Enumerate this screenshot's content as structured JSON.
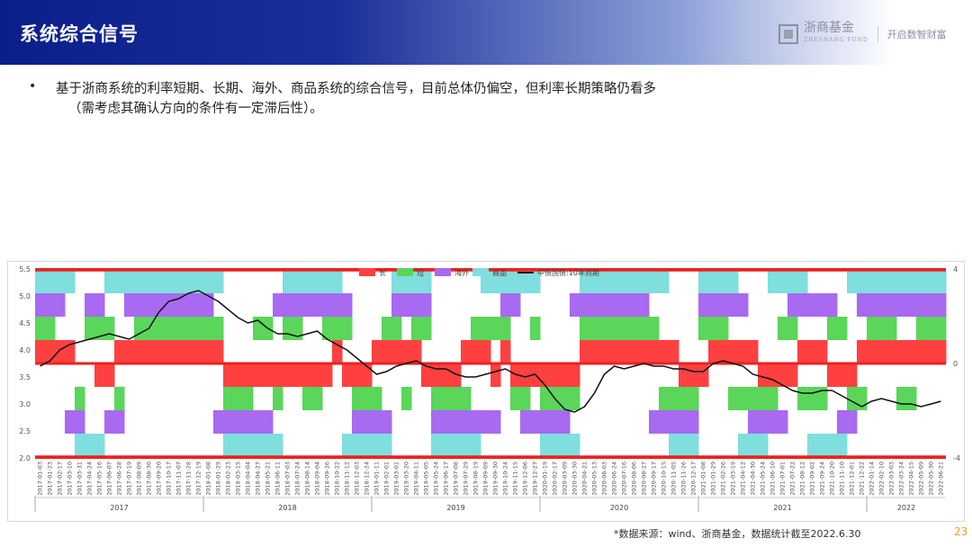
{
  "header": {
    "title": "系统综合信号"
  },
  "logo": {
    "name": "浙商基金",
    "sub": "ZHESHANG FUND",
    "slogan": "开启数智财富"
  },
  "bullet": {
    "symbol": "•",
    "line1": "基于浙商系统的利率短期、长期、海外、商品系统的综合信号，目前总体仍偏空，但利率长期策略仍看多",
    "line2": "（需考虑其确认方向的条件有一定滞后性）。"
  },
  "chart_data": {
    "type": "bar",
    "legend": [
      "长",
      "短",
      "海外",
      "商品",
      "中债国债:10年到期"
    ],
    "colors": {
      "long": "#ff4040",
      "short": "#5ad65a",
      "overseas": "#a86af0",
      "commodity": "#7fdede",
      "yield": "#111111"
    },
    "y_left": {
      "min": 2.0,
      "max": 5.5,
      "ticks": [
        "2.0",
        "2.5",
        "3.0",
        "3.5",
        "4.0",
        "4.5",
        "5.0",
        "5.5"
      ]
    },
    "y_right": {
      "min": -4,
      "max": 4,
      "ticks": [
        "4",
        "0",
        "-4"
      ]
    },
    "years": [
      "2017",
      "2018",
      "2019",
      "2020",
      "2021",
      "2022"
    ],
    "x_ticks": [
      "2017-01-03",
      "2017-01-23",
      "2017-02-17",
      "2017-03-10",
      "2017-03-31",
      "2017-04-24",
      "2017-05-16",
      "2017-06-07",
      "2017-06-28",
      "2017-07-19",
      "2017-08-09",
      "2017-08-30",
      "2017-09-20",
      "2017-10-17",
      "2017-11-07",
      "2017-11-28",
      "2017-12-19",
      "2018-01-08",
      "2018-01-29",
      "2018-02-23",
      "2018-03-15",
      "2018-04-04",
      "2018-04-27",
      "2018-05-21",
      "2018-06-11",
      "2018-07-03",
      "2018-07-24",
      "2018-08-14",
      "2018-09-04",
      "2018-09-26",
      "2018-10-22",
      "2018-11-12",
      "2018-12-03",
      "2018-12-24",
      "2019-01-11",
      "2019-02-01",
      "2019-03-01",
      "2019-03-20",
      "2019-04-11",
      "2019-05-05",
      "2019-05-24",
      "2019-06-17",
      "2019-07-08",
      "2019-07-29",
      "2019-08-19",
      "2019-09-09",
      "2019-09-30",
      "2019-10-24",
      "2019-11-15",
      "2019-12-06",
      "2019-12-27",
      "2020-01-19",
      "2020-02-17",
      "2020-03-09",
      "2020-03-30",
      "2020-04-21",
      "2020-05-13",
      "2020-06-03",
      "2020-06-24",
      "2020-07-16",
      "2020-08-06",
      "2020-08-27",
      "2020-09-17",
      "2020-10-15",
      "2020-11-05",
      "2020-11-26",
      "2020-12-17",
      "2021-01-08",
      "2021-01-29",
      "2021-02-26",
      "2021-03-19",
      "2021-04-12",
      "2021-04-30",
      "2021-05-24",
      "2021-06-10",
      "2021-07-01",
      "2021-07-22",
      "2021-08-12",
      "2021-09-02",
      "2021-09-24",
      "2021-10-20",
      "2021-11-10",
      "2021-12-01",
      "2021-12-22",
      "2022-01-14",
      "2022-02-10",
      "2022-03-03",
      "2022-03-24",
      "2022-04-15",
      "2022-05-09",
      "2022-05-30",
      "2022-06-21"
    ],
    "yield_10y": [
      3.7,
      3.8,
      4.0,
      4.1,
      4.15,
      4.2,
      4.25,
      4.3,
      4.25,
      4.2,
      4.3,
      4.4,
      4.7,
      4.9,
      4.95,
      5.05,
      5.1,
      5.0,
      4.9,
      4.75,
      4.6,
      4.5,
      4.55,
      4.4,
      4.3,
      4.3,
      4.25,
      4.3,
      4.35,
      4.2,
      4.1,
      4.0,
      3.85,
      3.7,
      3.55,
      3.6,
      3.7,
      3.75,
      3.8,
      3.7,
      3.65,
      3.65,
      3.55,
      3.5,
      3.5,
      3.55,
      3.6,
      3.65,
      3.55,
      3.5,
      3.55,
      3.35,
      3.1,
      2.9,
      2.85,
      2.95,
      3.2,
      3.55,
      3.7,
      3.65,
      3.7,
      3.75,
      3.7,
      3.7,
      3.65,
      3.65,
      3.6,
      3.6,
      3.75,
      3.8,
      3.75,
      3.7,
      3.55,
      3.5,
      3.45,
      3.35,
      3.25,
      3.2,
      3.2,
      3.25,
      3.25,
      3.15,
      3.05,
      2.95,
      3.05,
      3.1,
      3.05,
      3.0,
      3.0,
      2.95,
      3.0,
      3.05
    ],
    "signals": {
      "long": [
        1,
        1,
        1,
        1,
        0,
        0,
        -1,
        -1,
        1,
        1,
        1,
        1,
        1,
        1,
        1,
        1,
        1,
        1,
        1,
        -1,
        -1,
        -1,
        -1,
        -1,
        -1,
        -1,
        -1,
        -1,
        -1,
        -1,
        1,
        -1,
        -1,
        -1,
        1,
        1,
        1,
        1,
        1,
        -1,
        -1,
        -1,
        -1,
        1,
        1,
        1,
        -1,
        1,
        -1,
        -1,
        -1,
        -1,
        -1,
        -1,
        -1,
        1,
        1,
        1,
        1,
        1,
        1,
        1,
        1,
        1,
        1,
        -1,
        -1,
        -1,
        1,
        1,
        1,
        1,
        1,
        -1,
        -1,
        -1,
        -1,
        1,
        1,
        1,
        -1,
        -1,
        -1,
        1,
        1,
        1,
        1,
        1,
        1,
        1,
        1,
        1
      ],
      "short": [
        1,
        1,
        0,
        0,
        -1,
        1,
        1,
        1,
        -1,
        0,
        1,
        1,
        1,
        1,
        1,
        1,
        1,
        1,
        1,
        -1,
        -1,
        -1,
        1,
        1,
        -1,
        1,
        1,
        -1,
        -1,
        1,
        1,
        1,
        -1,
        -1,
        -1,
        1,
        1,
        -1,
        1,
        1,
        -1,
        -1,
        -1,
        -1,
        1,
        1,
        1,
        1,
        -1,
        -1,
        1,
        -1,
        -1,
        -1,
        -1,
        1,
        1,
        1,
        1,
        1,
        1,
        1,
        1,
        -1,
        -1,
        -1,
        -1,
        1,
        1,
        1,
        -1,
        -1,
        -1,
        -1,
        -1,
        1,
        1,
        -1,
        -1,
        -1,
        1,
        1,
        -1,
        -1,
        1,
        1,
        1,
        -1,
        -1,
        1,
        1,
        1
      ],
      "overseas": [
        1,
        1,
        1,
        -1,
        -1,
        1,
        1,
        -1,
        -1,
        1,
        1,
        1,
        1,
        1,
        1,
        1,
        1,
        1,
        -1,
        -1,
        -1,
        -1,
        -1,
        -1,
        1,
        1,
        1,
        1,
        1,
        1,
        1,
        1,
        -1,
        -1,
        -1,
        -1,
        1,
        1,
        1,
        1,
        -1,
        -1,
        -1,
        -1,
        -1,
        -1,
        -1,
        1,
        1,
        -1,
        -1,
        -1,
        -1,
        -1,
        1,
        1,
        1,
        1,
        1,
        1,
        1,
        1,
        -1,
        -1,
        -1,
        -1,
        -1,
        1,
        1,
        1,
        1,
        1,
        -1,
        -1,
        -1,
        -1,
        1,
        1,
        1,
        1,
        1,
        -1,
        -1,
        1,
        1,
        1,
        1,
        1,
        1,
        1,
        1,
        1
      ],
      "commodity": [
        1,
        1,
        1,
        1,
        -1,
        -1,
        -1,
        1,
        1,
        1,
        1,
        1,
        1,
        1,
        1,
        1,
        1,
        1,
        1,
        -1,
        -1,
        -1,
        -1,
        -1,
        -1,
        1,
        1,
        1,
        1,
        1,
        1,
        -1,
        -1,
        -1,
        -1,
        -1,
        1,
        1,
        1,
        1,
        -1,
        -1,
        -1,
        -1,
        -1,
        1,
        1,
        1,
        1,
        1,
        1,
        -1,
        -1,
        -1,
        -1,
        1,
        1,
        1,
        1,
        1,
        1,
        1,
        1,
        1,
        -1,
        -1,
        -1,
        1,
        1,
        1,
        1,
        -1,
        -1,
        -1,
        1,
        1,
        1,
        1,
        -1,
        -1,
        -1,
        -1,
        1,
        1,
        1,
        1,
        1,
        1,
        1,
        1,
        1,
        1
      ]
    }
  },
  "footnote": "*数据来源：wind、浙商基金，数据统计截至2022.6.30",
  "page_number": "23"
}
